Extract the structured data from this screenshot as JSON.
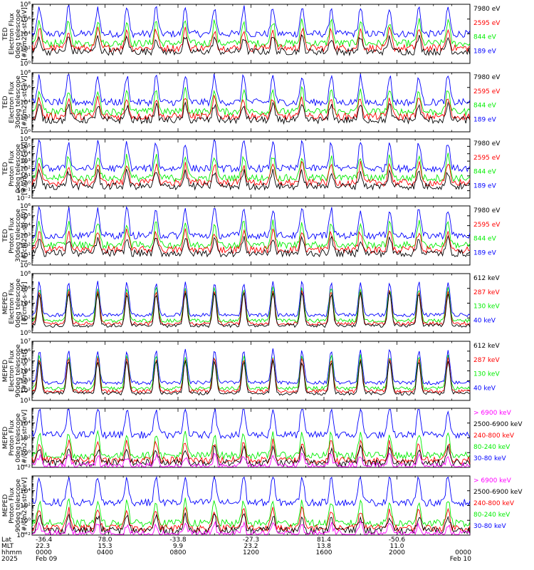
{
  "chart_data": [
    {
      "type": "line",
      "ylabel": [
        "TED",
        "Electron Flux",
        "0deg telescope",
        "[#/cm2-s-str-eV]"
      ],
      "yscale": "log",
      "ylim_exponents": [
        0,
        8
      ],
      "ytick_labels": [
        "10⁰",
        "10²",
        "10⁴",
        "10⁶",
        "10⁸"
      ],
      "series": [
        {
          "name": "7980 eV",
          "color": "#000000"
        },
        {
          "name": "2595 eV",
          "color": "#ff0000"
        },
        {
          "name": "844 eV",
          "color": "#00ee00"
        },
        {
          "name": "189 eV",
          "color": "#0000ff"
        }
      ]
    },
    {
      "type": "line",
      "ylabel": [
        "TED",
        "Electron Flux",
        "30deg telescope",
        "[#/cm2-s-str-eV]"
      ],
      "yscale": "log",
      "ylim_exponents": [
        0,
        8
      ],
      "ytick_labels": [
        "10⁰",
        "10²",
        "10⁴",
        "10⁶",
        "10⁸"
      ],
      "series": [
        {
          "name": "7980 eV",
          "color": "#000000"
        },
        {
          "name": "2595 eV",
          "color": "#ff0000"
        },
        {
          "name": "844 eV",
          "color": "#00ee00"
        },
        {
          "name": "189 eV",
          "color": "#0000ff"
        }
      ]
    },
    {
      "type": "line",
      "ylabel": [
        "TED",
        "Proton Flux",
        "0deg telescope",
        "[#/cm2-s-str-eV]"
      ],
      "yscale": "log",
      "ylim_exponents": [
        -2,
        6
      ],
      "ytick_labels": [
        "10⁻²",
        "10⁻¹",
        "10⁰",
        "10¹",
        "10²",
        "10³",
        "10⁴",
        "10⁵",
        "10⁶"
      ],
      "series": [
        {
          "name": "7980 eV",
          "color": "#000000"
        },
        {
          "name": "2595 eV",
          "color": "#ff0000"
        },
        {
          "name": "844 eV",
          "color": "#00ee00"
        },
        {
          "name": "189 eV",
          "color": "#0000ff"
        }
      ]
    },
    {
      "type": "line",
      "ylabel": [
        "TED",
        "Proton Flux",
        "30deg telescope",
        "[#/cm2-s-str-eV]"
      ],
      "yscale": "log",
      "ylim_exponents": [
        0,
        6
      ],
      "ytick_labels": [
        "10⁰",
        "10¹",
        "10²",
        "10³",
        "10⁴",
        "10⁵",
        "10⁶"
      ],
      "series": [
        {
          "name": "7980 eV",
          "color": "#000000"
        },
        {
          "name": "2595 eV",
          "color": "#ff0000"
        },
        {
          "name": "844 eV",
          "color": "#00ee00"
        },
        {
          "name": "189 eV",
          "color": "#0000ff"
        }
      ]
    },
    {
      "type": "line",
      "ylabel": [
        "MEPED",
        "Electron Flux",
        "0deg telescope",
        "[#/cm2-s-str]"
      ],
      "yscale": "log",
      "ylim_exponents": [
        0,
        8
      ],
      "ytick_labels": [
        "10⁰",
        "10²",
        "10⁴",
        "10⁶",
        "10⁸"
      ],
      "series": [
        {
          "name": "612 keV",
          "color": "#000000"
        },
        {
          "name": "287 keV",
          "color": "#ff0000"
        },
        {
          "name": "130 keV",
          "color": "#00ee00"
        },
        {
          "name": "40 keV",
          "color": "#0000ff"
        }
      ]
    },
    {
      "type": "line",
      "ylabel": [
        "MEPED",
        "Electron Flux",
        "90deg telescope",
        "[#/cm2-s-str]"
      ],
      "yscale": "log",
      "ylim_exponents": [
        1,
        7
      ],
      "ytick_labels": [
        "10¹",
        "10²",
        "10³",
        "10⁴",
        "10⁵",
        "10⁶",
        "10⁷"
      ],
      "series": [
        {
          "name": "612 keV",
          "color": "#000000"
        },
        {
          "name": "287 keV",
          "color": "#ff0000"
        },
        {
          "name": "130 keV",
          "color": "#00ee00"
        },
        {
          "name": "40 keV",
          "color": "#0000ff"
        }
      ]
    },
    {
      "type": "line",
      "ylabel": [
        "MEPED",
        "Proton Flux",
        "0deg telescope",
        "[#/cm2-s-str-keV]"
      ],
      "yscale": "log",
      "ylim_exponents": [
        -2,
        6
      ],
      "ytick_labels": [
        "10⁻²",
        "10⁰",
        "10²",
        "10⁴"
      ],
      "series": [
        {
          "name": "> 6900 keV",
          "color": "#ff00ff"
        },
        {
          "name": "2500-6900 keV",
          "color": "#000000"
        },
        {
          "name": "240-800 keV",
          "color": "#ff0000"
        },
        {
          "name": "80-240 keV",
          "color": "#00ee00"
        },
        {
          "name": "30-80 keV",
          "color": "#0000ff"
        }
      ]
    },
    {
      "type": "line",
      "ylabel": [
        "MEPED",
        "Proton Flux",
        "90deg telescope",
        "[#/cm2-s-str-keV]"
      ],
      "yscale": "log",
      "ylim_exponents": [
        -2,
        6
      ],
      "ytick_labels": [
        "10⁻²",
        "10⁰",
        "10²",
        "10⁴"
      ],
      "series": [
        {
          "name": "> 6900 keV",
          "color": "#ff00ff"
        },
        {
          "name": "2500-6900 keV",
          "color": "#000000"
        },
        {
          "name": "240-800 keV",
          "color": "#ff0000"
        },
        {
          "name": "80-240 keV",
          "color": "#00ee00"
        },
        {
          "name": "30-80 keV",
          "color": "#0000ff"
        }
      ]
    }
  ],
  "footer": {
    "row_labels": [
      "Lat",
      "MLT",
      "hhmm",
      "2025"
    ],
    "columns": [
      {
        "lat": "-36.4",
        "mlt": "22.3",
        "hhmm": "0000",
        "date": "Feb 09"
      },
      {
        "lat": "78.0",
        "mlt": "15.3",
        "hhmm": "0400",
        "date": ""
      },
      {
        "lat": "-33.8",
        "mlt": "9.9",
        "hhmm": "0800",
        "date": ""
      },
      {
        "lat": "-27.3",
        "mlt": "23.2",
        "hhmm": "1200",
        "date": ""
      },
      {
        "lat": "81.4",
        "mlt": "13.8",
        "hhmm": "1600",
        "date": ""
      },
      {
        "lat": "-50.6",
        "mlt": "11.0",
        "hhmm": "2000",
        "date": ""
      },
      {
        "lat": "",
        "mlt": "",
        "hhmm": "0000",
        "date": "Feb 10"
      }
    ]
  }
}
